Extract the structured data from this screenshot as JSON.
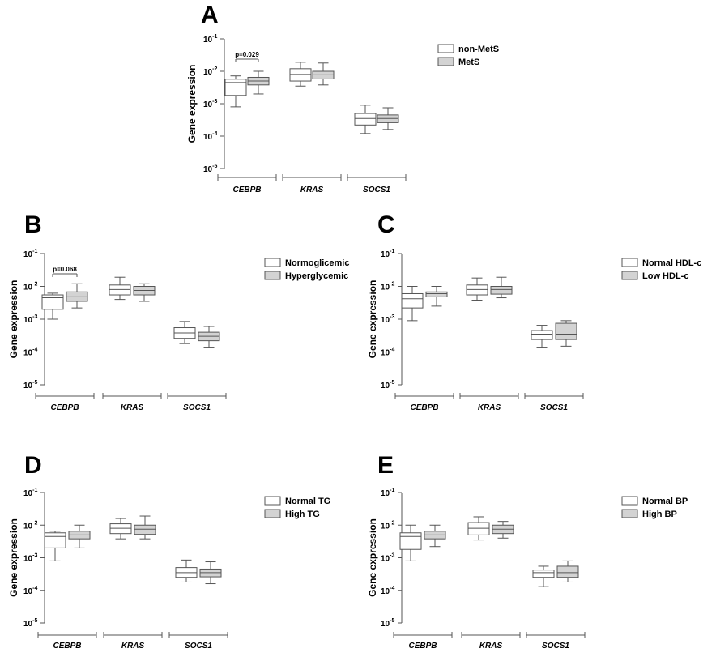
{
  "chart_data": [
    {
      "type": "box",
      "panel": "A",
      "ylabel": "Gene expression",
      "yscale": "log",
      "ylim": [
        1e-05,
        0.1
      ],
      "yticks": [
        {
          "base": "10",
          "exp": "-1",
          "value": 0.1
        },
        {
          "base": "10",
          "exp": "-2",
          "value": 0.01
        },
        {
          "base": "10",
          "exp": "-3",
          "value": 0.001
        },
        {
          "base": "10",
          "exp": "-4",
          "value": 0.0001
        },
        {
          "base": "10",
          "exp": "-5",
          "value": 1e-05
        }
      ],
      "categories": [
        "CEBPB",
        "KRAS",
        "SOCS1"
      ],
      "series": [
        {
          "name": "non-MetS",
          "fill": "#ffffff",
          "boxes": [
            {
              "min": 0.0008,
              "q1": 0.0018,
              "median": 0.0045,
              "q3": 0.0057,
              "max": 0.0072
            },
            {
              "min": 0.0035,
              "q1": 0.005,
              "median": 0.008,
              "q3": 0.012,
              "max": 0.019
            },
            {
              "min": 0.00012,
              "q1": 0.00022,
              "median": 0.00035,
              "q3": 0.0005,
              "max": 0.0009
            }
          ]
        },
        {
          "name": "MetS",
          "fill": "#d3d3d3",
          "boxes": [
            {
              "min": 0.002,
              "q1": 0.0038,
              "median": 0.005,
              "q3": 0.0065,
              "max": 0.01
            },
            {
              "min": 0.0038,
              "q1": 0.0058,
              "median": 0.0078,
              "q3": 0.01,
              "max": 0.018
            },
            {
              "min": 0.00016,
              "q1": 0.00026,
              "median": 0.00035,
              "q3": 0.00045,
              "max": 0.00075
            }
          ]
        }
      ],
      "annotation": {
        "text": "p=0.029",
        "category": "CEBPB"
      }
    },
    {
      "type": "box",
      "panel": "B",
      "ylabel": "Gene expression",
      "yscale": "log",
      "ylim": [
        1e-05,
        0.1
      ],
      "yticks": [
        {
          "base": "10",
          "exp": "-1",
          "value": 0.1
        },
        {
          "base": "10",
          "exp": "-2",
          "value": 0.01
        },
        {
          "base": "10",
          "exp": "-3",
          "value": 0.001
        },
        {
          "base": "10",
          "exp": "-4",
          "value": 0.0001
        },
        {
          "base": "10",
          "exp": "-5",
          "value": 1e-05
        }
      ],
      "categories": [
        "CEBPB",
        "KRAS",
        "SOCS1"
      ],
      "series": [
        {
          "name": "Normoglicemic",
          "fill": "#ffffff",
          "boxes": [
            {
              "min": 0.001,
              "q1": 0.002,
              "median": 0.0045,
              "q3": 0.0055,
              "max": 0.0062
            },
            {
              "min": 0.004,
              "q1": 0.0055,
              "median": 0.008,
              "q3": 0.011,
              "max": 0.019
            },
            {
              "min": 0.00018,
              "q1": 0.00026,
              "median": 0.00038,
              "q3": 0.00055,
              "max": 0.00085
            }
          ]
        },
        {
          "name": "Hyperglycemic",
          "fill": "#d3d3d3",
          "boxes": [
            {
              "min": 0.0022,
              "q1": 0.0035,
              "median": 0.0048,
              "q3": 0.0068,
              "max": 0.012
            },
            {
              "min": 0.0035,
              "q1": 0.0055,
              "median": 0.0075,
              "q3": 0.01,
              "max": 0.012
            },
            {
              "min": 0.00014,
              "q1": 0.00022,
              "median": 0.0003,
              "q3": 0.0004,
              "max": 0.0006
            }
          ]
        }
      ],
      "annotation": {
        "text": "p=0.068",
        "category": "CEBPB"
      }
    },
    {
      "type": "box",
      "panel": "C",
      "ylabel": "Gene expression",
      "yscale": "log",
      "ylim": [
        1e-05,
        0.1
      ],
      "yticks": [
        {
          "base": "10",
          "exp": "-1",
          "value": 0.1
        },
        {
          "base": "10",
          "exp": "-2",
          "value": 0.01
        },
        {
          "base": "10",
          "exp": "-3",
          "value": 0.001
        },
        {
          "base": "10",
          "exp": "-4",
          "value": 0.0001
        },
        {
          "base": "10",
          "exp": "-5",
          "value": 1e-05
        }
      ],
      "categories": [
        "CEBPB",
        "KRAS",
        "SOCS1"
      ],
      "series": [
        {
          "name": "Normal HDL-c",
          "fill": "#ffffff",
          "boxes": [
            {
              "min": 0.0009,
              "q1": 0.0022,
              "median": 0.0042,
              "q3": 0.006,
              "max": 0.01
            },
            {
              "min": 0.0038,
              "q1": 0.0055,
              "median": 0.008,
              "q3": 0.011,
              "max": 0.018
            },
            {
              "min": 0.00014,
              "q1": 0.00024,
              "median": 0.00035,
              "q3": 0.00045,
              "max": 0.00065
            }
          ]
        },
        {
          "name": "Low HDL-c",
          "fill": "#d3d3d3",
          "boxes": [
            {
              "min": 0.0025,
              "q1": 0.0048,
              "median": 0.006,
              "q3": 0.0068,
              "max": 0.01
            },
            {
              "min": 0.0045,
              "q1": 0.0058,
              "median": 0.008,
              "q3": 0.01,
              "max": 0.019
            },
            {
              "min": 0.00015,
              "q1": 0.00024,
              "median": 0.00035,
              "q3": 0.00075,
              "max": 0.0009
            }
          ]
        }
      ]
    },
    {
      "type": "box",
      "panel": "D",
      "ylabel": "Gene expression",
      "yscale": "log",
      "ylim": [
        1e-05,
        0.1
      ],
      "yticks": [
        {
          "base": "10",
          "exp": "-1",
          "value": 0.1
        },
        {
          "base": "10",
          "exp": "-2",
          "value": 0.01
        },
        {
          "base": "10",
          "exp": "-3",
          "value": 0.001
        },
        {
          "base": "10",
          "exp": "-4",
          "value": 0.0001
        },
        {
          "base": "10",
          "exp": "-5",
          "value": 1e-05
        }
      ],
      "categories": [
        "CEBPB",
        "KRAS",
        "SOCS1"
      ],
      "series": [
        {
          "name": "Normal TG",
          "fill": "#ffffff",
          "boxes": [
            {
              "min": 0.0008,
              "q1": 0.002,
              "median": 0.0045,
              "q3": 0.0058,
              "max": 0.0065
            },
            {
              "min": 0.0038,
              "q1": 0.0055,
              "median": 0.008,
              "q3": 0.011,
              "max": 0.016
            },
            {
              "min": 0.00018,
              "q1": 0.00025,
              "median": 0.00035,
              "q3": 0.0005,
              "max": 0.00085
            }
          ]
        },
        {
          "name": "High TG",
          "fill": "#d3d3d3",
          "boxes": [
            {
              "min": 0.002,
              "q1": 0.0038,
              "median": 0.005,
              "q3": 0.0065,
              "max": 0.01
            },
            {
              "min": 0.0038,
              "q1": 0.0052,
              "median": 0.0075,
              "q3": 0.01,
              "max": 0.019
            },
            {
              "min": 0.00016,
              "q1": 0.00026,
              "median": 0.00035,
              "q3": 0.00045,
              "max": 0.00075
            }
          ]
        }
      ]
    },
    {
      "type": "box",
      "panel": "E",
      "ylabel": "Gene expression",
      "yscale": "log",
      "ylim": [
        1e-05,
        0.1
      ],
      "yticks": [
        {
          "base": "10",
          "exp": "-1",
          "value": 0.1
        },
        {
          "base": "10",
          "exp": "-2",
          "value": 0.01
        },
        {
          "base": "10",
          "exp": "-3",
          "value": 0.001
        },
        {
          "base": "10",
          "exp": "-4",
          "value": 0.0001
        },
        {
          "base": "10",
          "exp": "-5",
          "value": 1e-05
        }
      ],
      "categories": [
        "CEBPB",
        "KRAS",
        "SOCS1"
      ],
      "series": [
        {
          "name": "Normal BP",
          "fill": "#ffffff",
          "boxes": [
            {
              "min": 0.0008,
              "q1": 0.0018,
              "median": 0.0045,
              "q3": 0.0058,
              "max": 0.01
            },
            {
              "min": 0.0035,
              "q1": 0.005,
              "median": 0.008,
              "q3": 0.012,
              "max": 0.018
            },
            {
              "min": 0.00013,
              "q1": 0.00025,
              "median": 0.00035,
              "q3": 0.00042,
              "max": 0.00055
            }
          ]
        },
        {
          "name": "High BP",
          "fill": "#d3d3d3",
          "boxes": [
            {
              "min": 0.0022,
              "q1": 0.0038,
              "median": 0.005,
              "q3": 0.0065,
              "max": 0.01
            },
            {
              "min": 0.004,
              "q1": 0.0055,
              "median": 0.0075,
              "q3": 0.01,
              "max": 0.013
            },
            {
              "min": 0.00018,
              "q1": 0.00025,
              "median": 0.00035,
              "q3": 0.00055,
              "max": 0.0008
            }
          ]
        }
      ]
    }
  ]
}
